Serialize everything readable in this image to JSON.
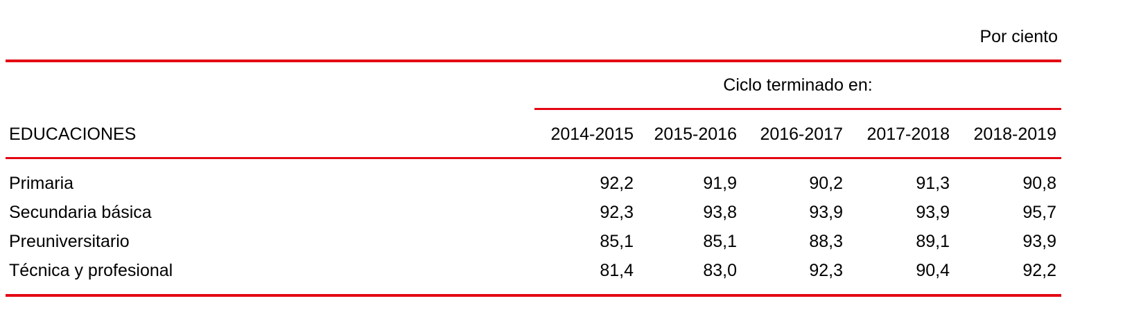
{
  "unit_note": "Por ciento",
  "group_header": "Ciclo terminado en:",
  "row_header": "EDUCACIONES",
  "columns": [
    "2014-2015",
    "2015-2016",
    "2016-2017",
    "2017-2018",
    "2018-2019"
  ],
  "rows": [
    {
      "label": "Primaria",
      "values": [
        "92,2",
        "91,9",
        "90,2",
        "91,3",
        "90,8"
      ]
    },
    {
      "label": "Secundaria básica",
      "values": [
        "92,3",
        "93,8",
        "93,9",
        "93,9",
        "95,7"
      ]
    },
    {
      "label": "Preuniversitario",
      "values": [
        "85,1",
        "85,1",
        "88,3",
        "89,1",
        "93,9"
      ]
    },
    {
      "label": "Técnica y profesional",
      "values": [
        "81,4",
        "83,0",
        "92,3",
        "90,4",
        "92,2"
      ]
    }
  ],
  "colors": {
    "rule": "#e30613",
    "text": "#000000"
  }
}
